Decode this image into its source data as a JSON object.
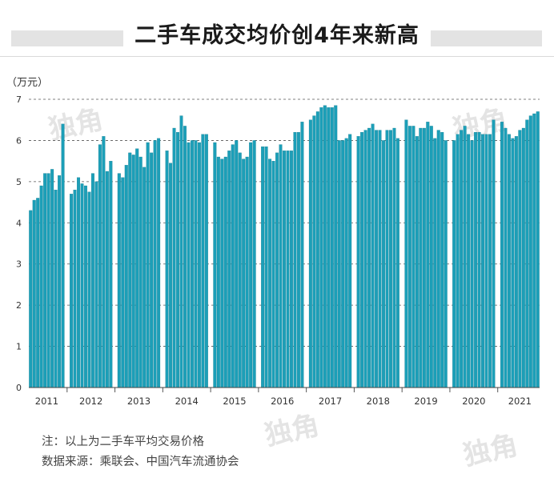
{
  "title": "二手车成交均价创4年来新高",
  "notes": [
    "注：以上为二手车平均交易价格",
    "数据来源：乘联会、中国汽车流通协会"
  ],
  "watermark_text": "独角",
  "colors": {
    "bar": "#1c9fb8",
    "bar_edge": "#147d91",
    "grid": "#555555",
    "title_band": "#e3e3e3"
  },
  "chart_data": {
    "type": "bar",
    "ylabel": "（万元）",
    "ylim": [
      0,
      7
    ],
    "yticks": [
      0,
      1,
      2,
      3,
      4,
      5,
      6,
      7
    ],
    "grid": "dashed horizontal",
    "years": [
      {
        "label": "2011",
        "values": [
          4.3,
          4.55,
          4.6,
          4.9,
          5.2,
          5.2,
          5.3,
          4.8,
          5.15,
          6.4
        ]
      },
      {
        "label": "2012",
        "values": [
          4.7,
          4.8,
          5.1,
          4.95,
          4.9,
          4.75,
          5.2,
          5.0,
          5.9,
          6.1,
          5.25,
          5.5
        ]
      },
      {
        "label": "2013",
        "values": [
          5.2,
          5.1,
          5.4,
          5.7,
          5.65,
          5.8,
          5.6,
          5.35,
          5.95,
          5.7,
          6.0,
          6.05
        ]
      },
      {
        "label": "2014",
        "values": [
          5.75,
          5.45,
          6.3,
          6.2,
          6.6,
          6.35,
          5.95,
          6.0,
          6.0,
          5.95,
          6.15,
          6.15
        ]
      },
      {
        "label": "2015",
        "values": [
          5.95,
          5.6,
          5.55,
          5.6,
          5.75,
          5.9,
          6.0,
          5.7,
          5.55,
          5.6,
          5.95,
          6.0
        ]
      },
      {
        "label": "2016",
        "values": [
          5.85,
          5.85,
          5.55,
          5.5,
          5.7,
          5.9,
          5.75,
          5.75,
          5.75,
          6.2,
          6.2,
          6.45
        ]
      },
      {
        "label": "2017",
        "values": [
          6.5,
          6.6,
          6.7,
          6.8,
          6.85,
          6.8,
          6.8,
          6.85,
          6.0,
          6.0,
          6.05,
          6.15
        ]
      },
      {
        "label": "2018",
        "values": [
          6.1,
          6.2,
          6.25,
          6.3,
          6.4,
          6.25,
          6.25,
          6.0,
          6.25,
          6.25,
          6.3,
          6.05
        ]
      },
      {
        "label": "2019",
        "values": [
          6.5,
          6.35,
          6.35,
          6.1,
          6.3,
          6.3,
          6.45,
          6.35,
          6.05,
          6.25,
          6.2,
          6.0
        ]
      },
      {
        "label": "2020",
        "values": [
          6.0,
          6.15,
          6.25,
          6.35,
          6.15,
          6.0,
          6.2,
          6.2,
          6.15,
          6.15,
          6.15,
          6.5
        ]
      },
      {
        "label": "2021",
        "values": [
          6.45,
          6.3,
          6.15,
          6.05,
          6.1,
          6.25,
          6.3,
          6.5,
          6.6,
          6.65,
          6.7
        ]
      }
    ]
  }
}
